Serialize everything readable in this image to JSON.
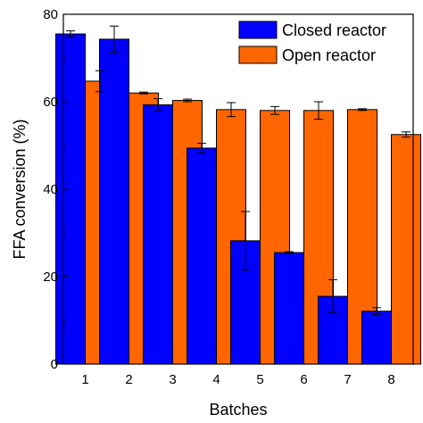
{
  "chart_data": {
    "type": "bar",
    "title": "",
    "xlabel": "Batches",
    "ylabel": "FFA conversion (%)",
    "categories": [
      "1",
      "2",
      "3",
      "4",
      "5",
      "6",
      "7",
      "8"
    ],
    "ylim": [
      0,
      80
    ],
    "yticks": [
      "0",
      "20",
      "40",
      "60",
      "80"
    ],
    "legend_position": "top-right",
    "series": [
      {
        "name": "Closed reactor",
        "color": "#0000ff",
        "values": [
          75.5,
          74.3,
          59.3,
          49.4,
          28.2,
          25.5,
          15.5,
          12.1
        ],
        "errors": [
          0.7,
          3.0,
          1.4,
          1.1,
          6.7,
          0.2,
          3.8,
          0.8
        ]
      },
      {
        "name": "Open reactor",
        "color": "#ff6600",
        "values": [
          64.7,
          62.0,
          60.3,
          58.2,
          58.0,
          58.0,
          58.2,
          52.5
        ],
        "errors": [
          2.4,
          0.2,
          0.3,
          1.6,
          0.9,
          2.0,
          0.2,
          0.6
        ]
      }
    ]
  }
}
